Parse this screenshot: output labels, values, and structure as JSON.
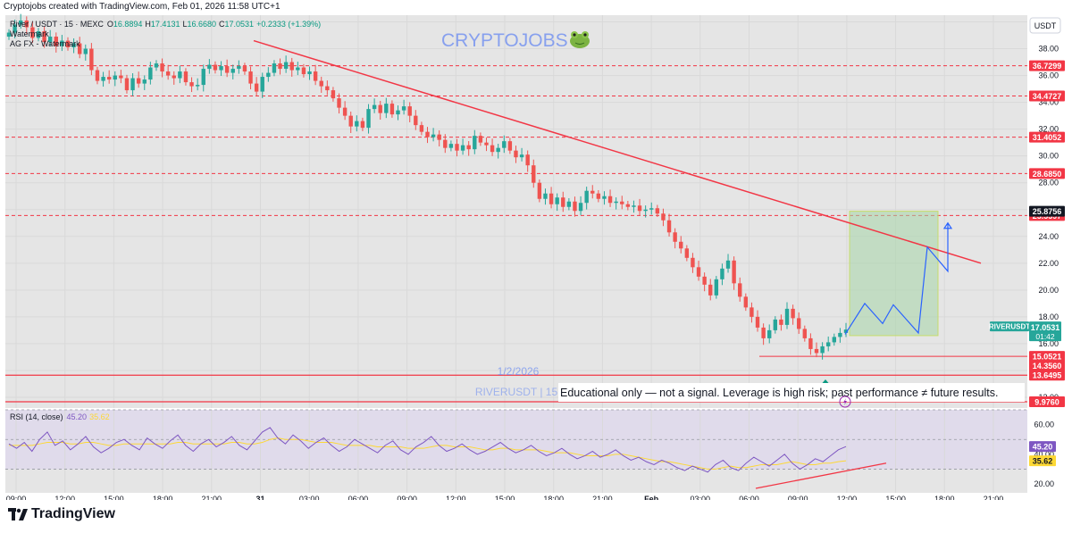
{
  "header": {
    "credit": "Cryptojobs created with TradingView.com, Feb 01, 2026 11:58 UTC+1",
    "symbol_line": "River / USDT · 15 · MEXC",
    "ohlc": {
      "o_label": "O",
      "o": "16.8894",
      "h_label": "H",
      "h": "17.4131",
      "l_label": "L",
      "l": "16.6680",
      "c_label": "C",
      "c": "17.0531",
      "change": "+0.2333 (+1.39%)"
    },
    "indicator_1": "Watermark",
    "indicator_2": "AG FX - Watermark"
  },
  "watermark": {
    "brand": "CRYPTOJOBS",
    "date": "1/2/2026",
    "symbol": "RIVERUSDT | 15"
  },
  "disclaimer": "Educational only — not a signal. Leverage is high risk; past performance ≠ future results.",
  "currency": "USDT",
  "colors": {
    "up": "#26a69a",
    "down": "#ef5350",
    "level": "#f23645",
    "trend": "#f23645",
    "projection": "#2962ff",
    "target_zone": "#a5d6a7",
    "rsi": "#7e57c2",
    "rsi_ma": "#fdd835",
    "pane_bg": "#e5e5e5",
    "rsi_band": "#e0dbeb",
    "arrow": "#089981"
  },
  "chart_data": [
    {
      "type": "candlestick",
      "symbol": "RIVERUSDT",
      "timeframe": "15",
      "exchange": "MEXC",
      "x_tick_labels": [
        "09:00",
        "12:00",
        "15:00",
        "18:00",
        "21:00",
        "31",
        "03:00",
        "06:00",
        "09:00",
        "12:00",
        "15:00",
        "18:00",
        "21:00",
        "Feb",
        "03:00",
        "06:00",
        "09:00",
        "12:00",
        "15:00",
        "18:00",
        "21:00"
      ],
      "y_ticks": [
        12,
        14,
        16,
        18,
        20,
        22,
        24,
        26,
        28,
        30,
        32,
        34,
        36,
        38,
        40
      ],
      "ylim": [
        11.2,
        40.5
      ],
      "last_price": 17.0531,
      "last_price_label": "RIVERUSDT",
      "countdown": "01:42",
      "horizontal_levels": [
        {
          "value": 36.7299,
          "label": "36.7299",
          "style": "dashed"
        },
        {
          "value": 34.4727,
          "label": "34.4727",
          "style": "dashed"
        },
        {
          "value": 31.4052,
          "label": "31.4052",
          "style": "dashed"
        },
        {
          "value": 28.685,
          "label": "28.6850",
          "style": "dashed"
        },
        {
          "value": 25.5597,
          "label": "25.5597",
          "style": "dashed"
        },
        {
          "value": 15.0521,
          "label": "15.0521",
          "style": "solid"
        },
        {
          "value": 13.6495,
          "label": "13.6495",
          "style": "solid"
        },
        {
          "value": 9.976,
          "label": "9.9760",
          "style": "solid"
        }
      ],
      "target_zone": {
        "top": 25.8756,
        "top_label": "25.8756",
        "bottom": 16.6,
        "stop_label": "14.3560"
      },
      "trendline": {
        "from": {
          "x": "23:00",
          "y": 38.6
        },
        "to": {
          "x": "17:30",
          "y": 22.0
        }
      },
      "projection_path": [
        16.7,
        19.0,
        17.5,
        18.9,
        16.8,
        23.2,
        21.4,
        25.0
      ],
      "candles_approx_closes": [
        39.2,
        39.8,
        40.1,
        39.6,
        38.8,
        39.3,
        38.5,
        38.9,
        38.2,
        38.6,
        38.1,
        38.4,
        37.6,
        38.0,
        36.4,
        35.6,
        35.9,
        35.7,
        36.0,
        35.8,
        34.9,
        35.8,
        35.4,
        35.7,
        36.6,
        36.9,
        36.3,
        36.0,
        35.8,
        36.3,
        35.5,
        35.2,
        35.3,
        36.5,
        36.8,
        36.4,
        36.7,
        36.2,
        36.5,
        36.7,
        36.3,
        35.4,
        34.8,
        35.9,
        36.2,
        36.9,
        36.5,
        37.0,
        36.4,
        36.6,
        36.1,
        36.3,
        35.6,
        35.2,
        34.9,
        34.3,
        33.6,
        33.0,
        32.2,
        32.6,
        32.1,
        33.5,
        33.8,
        33.2,
        33.9,
        33.1,
        33.4,
        33.7,
        33.0,
        32.3,
        31.8,
        31.4,
        31.6,
        31.2,
        30.6,
        30.9,
        30.4,
        30.8,
        30.5,
        31.5,
        31.0,
        30.8,
        30.3,
        30.6,
        31.1,
        30.4,
        29.9,
        30.1,
        29.3,
        28.0,
        26.8,
        27.2,
        26.4,
        26.9,
        26.2,
        26.6,
        25.9,
        26.5,
        27.4,
        27.2,
        26.8,
        27.0,
        26.5,
        26.6,
        26.4,
        26.2,
        26.3,
        25.9,
        26.0,
        26.1,
        25.7,
        25.2,
        24.3,
        23.6,
        23.1,
        22.4,
        21.7,
        21.0,
        20.4,
        19.6,
        20.8,
        21.6,
        22.2,
        20.5,
        19.5,
        18.7,
        18.0,
        17.2,
        16.4,
        17.0,
        17.8,
        17.4,
        18.6,
        17.9,
        17.1,
        16.4,
        15.6,
        15.3,
        15.8,
        16.1,
        16.5,
        16.8,
        17.05
      ]
    },
    {
      "type": "line",
      "title": "RSI (14, close)",
      "rsi_value": "45.20",
      "rsi_ma_value": "35.62",
      "y_ticks": [
        20,
        40,
        60
      ],
      "ylim": [
        14,
        70
      ],
      "band": [
        30,
        70
      ],
      "middle_line": 50,
      "series": [
        {
          "name": "RSI",
          "values": [
            47,
            44,
            48,
            42,
            50,
            55,
            46,
            49,
            43,
            47,
            52,
            45,
            41,
            44,
            48,
            50,
            46,
            43,
            51,
            47,
            44,
            49,
            53,
            46,
            42,
            47,
            50,
            45,
            48,
            52,
            46,
            43,
            49,
            55,
            58,
            51,
            47,
            53,
            49,
            44,
            48,
            51,
            46,
            42,
            45,
            50,
            47,
            44,
            41,
            46,
            49,
            43,
            40,
            45,
            48,
            52,
            46,
            42,
            44,
            47,
            43,
            40,
            42,
            45,
            48,
            44,
            41,
            43,
            46,
            42,
            39,
            41,
            44,
            40,
            37,
            39,
            42,
            38,
            40,
            43,
            39,
            36,
            38,
            35,
            33,
            36,
            34,
            31,
            29,
            32,
            30,
            28,
            33,
            36,
            31,
            29,
            34,
            38,
            35,
            32,
            36,
            40,
            34,
            30,
            33,
            37,
            35,
            39,
            43,
            45.2
          ]
        },
        {
          "name": "RSI-based MA",
          "values": [
            46,
            46,
            46,
            46,
            47,
            48,
            48,
            48,
            47,
            47,
            48,
            48,
            47,
            46,
            46,
            47,
            47,
            47,
            47,
            47,
            47,
            47,
            48,
            48,
            47,
            47,
            47,
            47,
            47,
            48,
            48,
            47,
            47,
            48,
            50,
            51,
            50,
            50,
            50,
            49,
            48,
            48,
            48,
            47,
            46,
            46,
            46,
            46,
            45,
            45,
            45,
            45,
            44,
            44,
            44,
            45,
            46,
            46,
            45,
            45,
            45,
            44,
            43,
            43,
            44,
            44,
            43,
            43,
            43,
            43,
            42,
            41,
            41,
            41,
            40,
            39,
            39,
            39,
            39,
            40,
            40,
            39,
            38,
            37,
            36,
            35,
            35,
            34,
            33,
            32,
            31,
            30,
            30,
            31,
            32,
            31,
            31,
            32,
            33,
            33,
            33,
            34,
            35,
            34,
            33,
            33,
            34,
            34,
            35,
            35.62
          ]
        }
      ]
    }
  ]
}
